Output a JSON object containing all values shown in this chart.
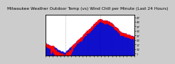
{
  "title": "Milwaukee Weather Outdoor Temp (vs) Wind Chill per Minute (Last 24 Hours)",
  "bg_color": "#cccccc",
  "plot_bg_color": "#ffffff",
  "bar_color": "#0000cc",
  "line_color": "#ff0000",
  "ylim": [
    5,
    50
  ],
  "ytick_labels": [
    "47",
    "42",
    "37",
    "32",
    "27",
    "22",
    "17",
    "12",
    "7"
  ],
  "ytick_values": [
    47,
    42,
    37,
    32,
    27,
    22,
    17,
    12,
    7
  ],
  "num_points": 1440,
  "grid_color": "#888888",
  "title_fontsize": 4.2,
  "tick_fontsize": 2.8,
  "num_gridlines": 3
}
